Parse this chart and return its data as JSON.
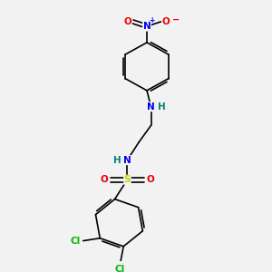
{
  "background_color": "#f2f2f2",
  "figsize": [
    3.0,
    3.0
  ],
  "dpi": 100,
  "atom_colors": {
    "N": "#0000ee",
    "O": "#ee0000",
    "S": "#cccc00",
    "Cl": "#00bb00",
    "C": "#000000",
    "H_teal": "#008080"
  },
  "bond_color": "#000000",
  "bond_width": 1.2
}
